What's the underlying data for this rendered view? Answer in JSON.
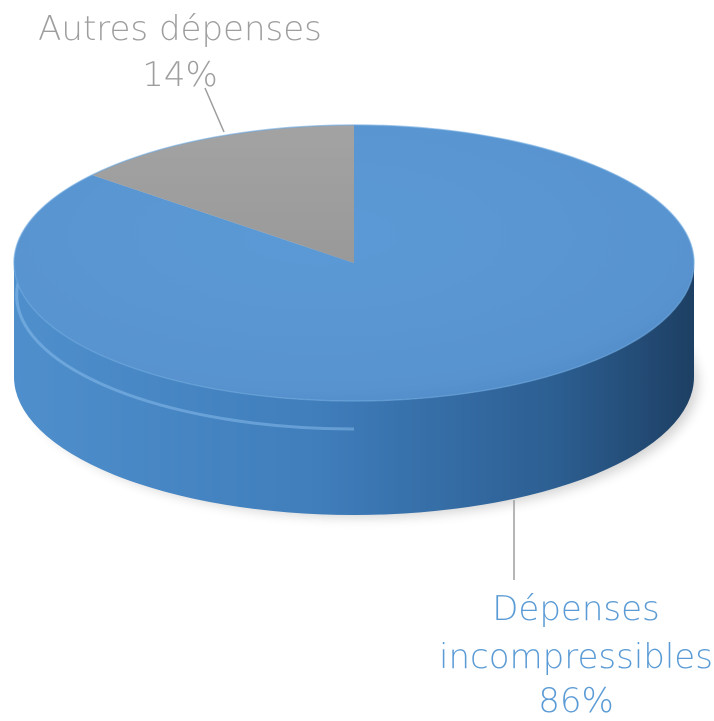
{
  "chart_data": {
    "type": "pie",
    "style": "3d",
    "title": "",
    "slices": [
      {
        "label_lines": [
          "Dépenses",
          "incompressibles"
        ],
        "percent_label": "86%",
        "value": 86,
        "color": "#5b9bd5"
      },
      {
        "label_lines": [
          "Autres dépenses"
        ],
        "percent_label": "14%",
        "value": 14,
        "color": "#a5a5a5"
      }
    ],
    "label_colors": {
      "Dépenses incompressibles": "#5b9bd5",
      "Autres dépenses": "#9e9e9e"
    }
  }
}
